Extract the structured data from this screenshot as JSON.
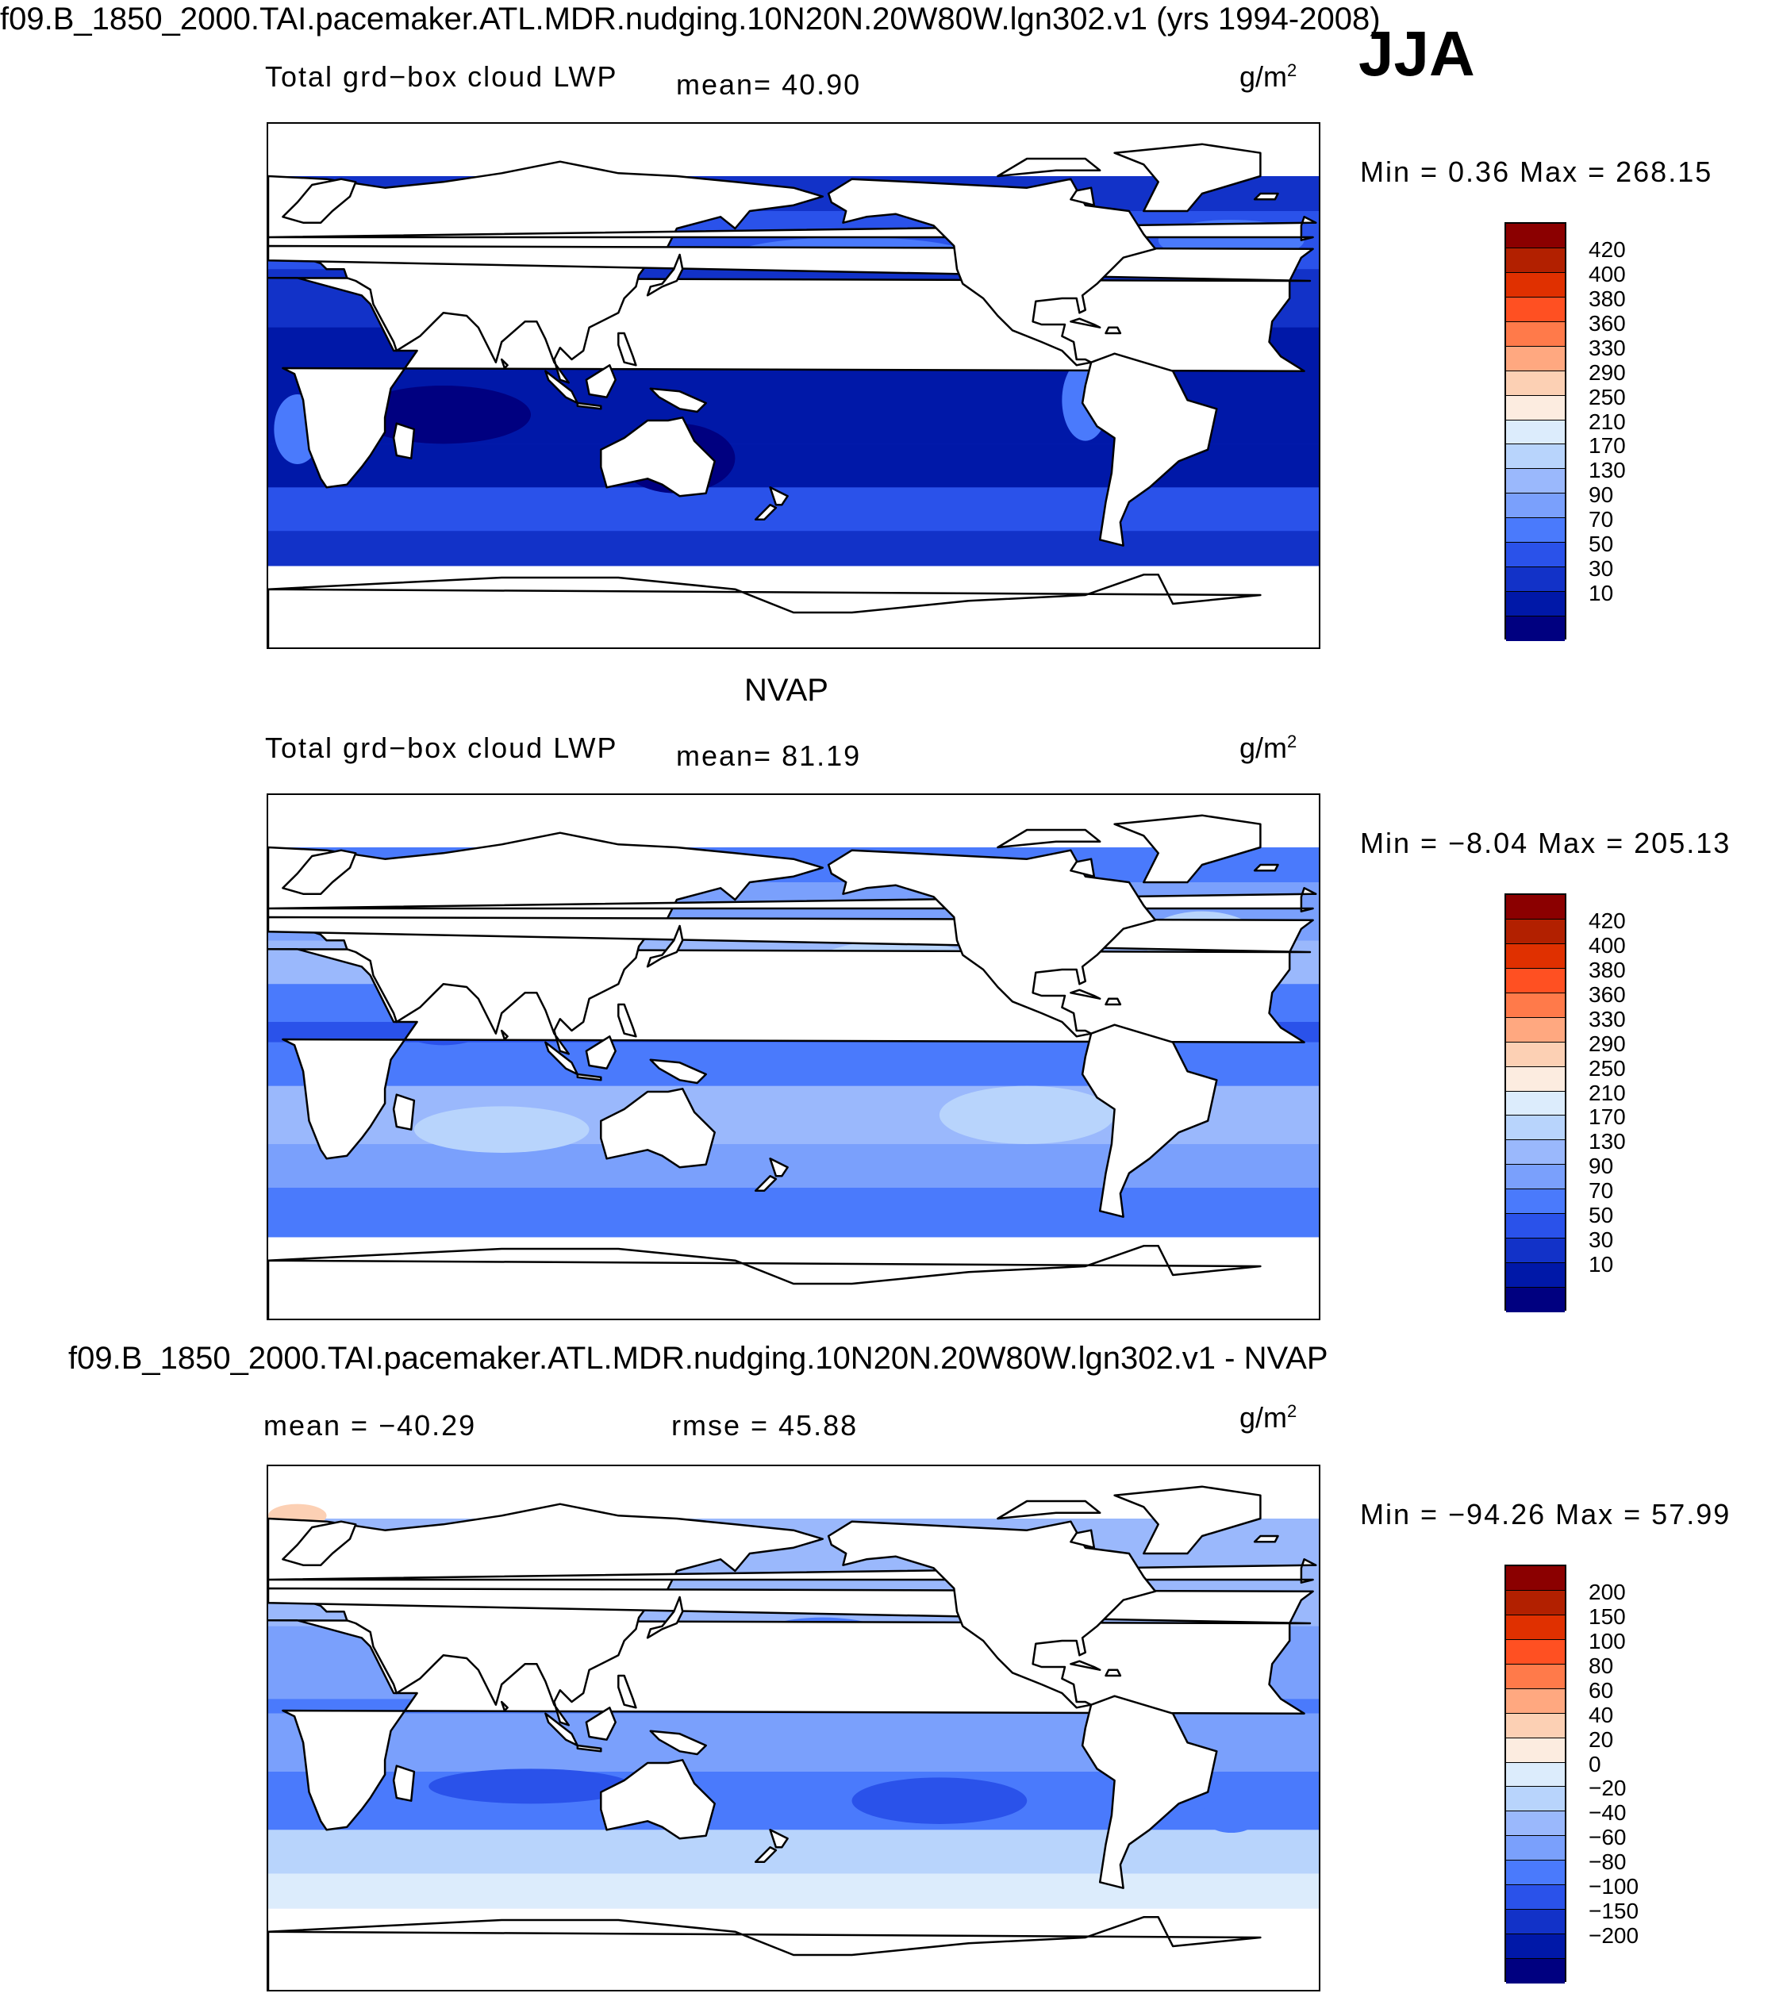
{
  "main_title": "f09.B_1850_2000.TAI.pacemaker.ATL.MDR.nudging.10N20N.20W80W.lgn302.v1 (yrs 1994-2008)",
  "season": "JJA",
  "colors": {
    "land": "#ffffff",
    "coast": "#000000",
    "frame": "#000000"
  },
  "panels": [
    {
      "section_title": "",
      "variable": "Total grd−box cloud LWP",
      "left_stat": "",
      "center_stat": "mean=   40.90",
      "units": "g/m",
      "units_exp": "2",
      "min_max": "Min =    0.36  Max =  268.15",
      "field": "model",
      "colorbar": {
        "labels": [
          "420",
          "400",
          "380",
          "360",
          "330",
          "290",
          "250",
          "210",
          "170",
          "130",
          "90",
          "70",
          "50",
          "30",
          "10"
        ],
        "colors": [
          "#8b0000",
          "#b22000",
          "#e03000",
          "#ff5022",
          "#ff7a4a",
          "#ffa880",
          "#fcd0b4",
          "#fcece0",
          "#dcecfc",
          "#b8d4fc",
          "#9ab8fc",
          "#7aa0fc",
          "#4a7afc",
          "#2a52ea",
          "#1232c8",
          "#0018a8",
          "#000080"
        ]
      }
    },
    {
      "section_title": "NVAP",
      "variable": "Total grd−box cloud LWP",
      "left_stat": "",
      "center_stat": "mean=   81.19",
      "units": "g/m",
      "units_exp": "2",
      "min_max": "Min =   −8.04  Max =  205.13",
      "field": "obs",
      "colorbar": {
        "labels": [
          "420",
          "400",
          "380",
          "360",
          "330",
          "290",
          "250",
          "210",
          "170",
          "130",
          "90",
          "70",
          "50",
          "30",
          "10"
        ],
        "colors": [
          "#8b0000",
          "#b22000",
          "#e03000",
          "#ff5022",
          "#ff7a4a",
          "#ffa880",
          "#fcd0b4",
          "#fcece0",
          "#dcecfc",
          "#b8d4fc",
          "#9ab8fc",
          "#7aa0fc",
          "#4a7afc",
          "#2a52ea",
          "#1232c8",
          "#0018a8",
          "#000080"
        ]
      }
    },
    {
      "section_title": "f09.B_1850_2000.TAI.pacemaker.ATL.MDR.nudging.10N20N.20W80W.lgn302.v1 - NVAP",
      "variable": "",
      "left_stat": "mean = −40.29",
      "center_stat": "rmse =   45.88",
      "units": "g/m",
      "units_exp": "2",
      "min_max": "Min = −94.26  Max =   57.99",
      "field": "diff",
      "colorbar": {
        "labels": [
          "200",
          "150",
          "100",
          "80",
          "60",
          "40",
          "20",
          "0",
          "−20",
          "−40",
          "−60",
          "−80",
          "−100",
          "−150",
          "−200"
        ],
        "colors": [
          "#8b0000",
          "#b22000",
          "#e03000",
          "#ff5022",
          "#ff7a4a",
          "#ffa880",
          "#fcd0b4",
          "#fcece0",
          "#dcecfc",
          "#b8d4fc",
          "#9ab8fc",
          "#7aa0fc",
          "#4a7afc",
          "#2a52ea",
          "#1232c8",
          "#0018a8",
          "#000080"
        ]
      }
    }
  ]
}
